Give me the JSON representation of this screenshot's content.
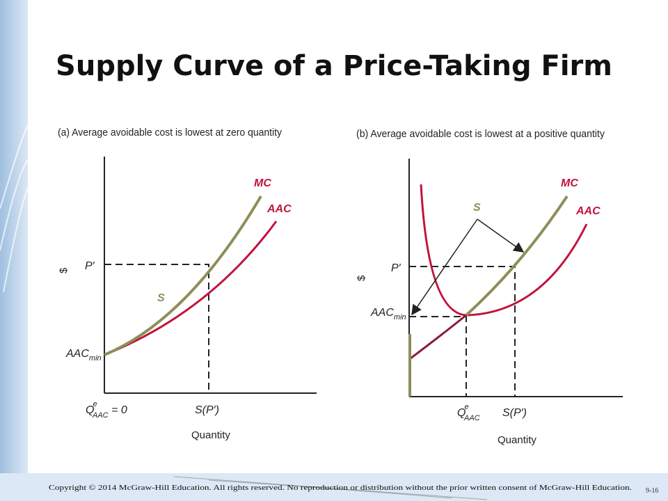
{
  "header": {
    "title": "Supply Curve of a Price-Taking Firm"
  },
  "panels": [
    {
      "caption": "(a) Average avoidable cost is lowest at zero quantity",
      "labels": {
        "mc": "MC",
        "aac": "AAC",
        "s": "S",
        "price": "P′",
        "y_axis": "$",
        "aac_min": {
          "main": "AAC",
          "sub": "min"
        },
        "q_aac": {
          "main": "Q",
          "sup": "e",
          "sub": "AAC",
          "suffix": " = 0"
        },
        "s_p": "S(P′)",
        "x_axis": "Quantity"
      }
    },
    {
      "caption": "(b) Average avoidable cost is lowest at a positive quantity",
      "labels": {
        "mc": "MC",
        "aac": "AAC",
        "s": "S",
        "price": "P′",
        "y_axis": "$",
        "aac_min": {
          "main": "AAC",
          "sub": "min"
        },
        "q_aac": {
          "main": "Q",
          "sup": "e",
          "sub": "AAC"
        },
        "s_p": "S(P′)",
        "x_axis": "Quantity"
      }
    }
  ],
  "footer": {
    "copyright": "Copyright © 2014 McGraw-Hill Education. All rights reserved. No reproduction or distribution without the prior written consent of McGraw-Hill Education.",
    "page": "9-16"
  }
}
